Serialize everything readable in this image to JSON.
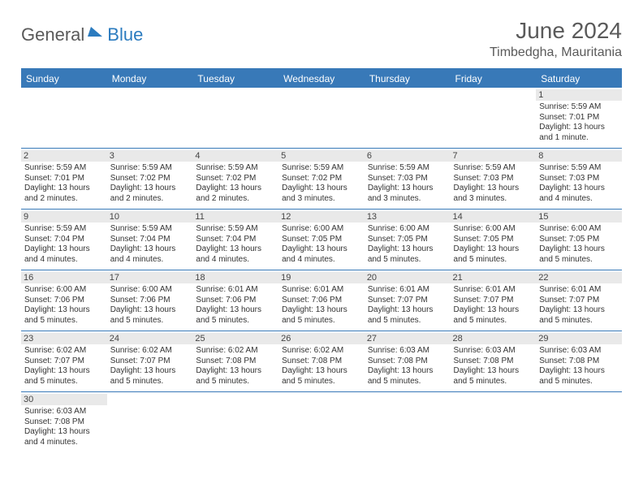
{
  "logo": {
    "text1": "General",
    "text2": "Blue"
  },
  "title": "June 2024",
  "location": "Timbedgha, Mauritania",
  "colors": {
    "header_bg": "#3879b8",
    "header_text": "#ffffff",
    "daynum_bg": "#e9e9e9",
    "border": "#3879b8",
    "logo_gray": "#5a5a5a",
    "logo_blue": "#2b7bbf"
  },
  "weekdays": [
    "Sunday",
    "Monday",
    "Tuesday",
    "Wednesday",
    "Thursday",
    "Friday",
    "Saturday"
  ],
  "weeks": [
    [
      null,
      null,
      null,
      null,
      null,
      null,
      {
        "n": "1",
        "sunrise": "Sunrise: 5:59 AM",
        "sunset": "Sunset: 7:01 PM",
        "daylight": "Daylight: 13 hours and 1 minute."
      }
    ],
    [
      {
        "n": "2",
        "sunrise": "Sunrise: 5:59 AM",
        "sunset": "Sunset: 7:01 PM",
        "daylight": "Daylight: 13 hours and 2 minutes."
      },
      {
        "n": "3",
        "sunrise": "Sunrise: 5:59 AM",
        "sunset": "Sunset: 7:02 PM",
        "daylight": "Daylight: 13 hours and 2 minutes."
      },
      {
        "n": "4",
        "sunrise": "Sunrise: 5:59 AM",
        "sunset": "Sunset: 7:02 PM",
        "daylight": "Daylight: 13 hours and 2 minutes."
      },
      {
        "n": "5",
        "sunrise": "Sunrise: 5:59 AM",
        "sunset": "Sunset: 7:02 PM",
        "daylight": "Daylight: 13 hours and 3 minutes."
      },
      {
        "n": "6",
        "sunrise": "Sunrise: 5:59 AM",
        "sunset": "Sunset: 7:03 PM",
        "daylight": "Daylight: 13 hours and 3 minutes."
      },
      {
        "n": "7",
        "sunrise": "Sunrise: 5:59 AM",
        "sunset": "Sunset: 7:03 PM",
        "daylight": "Daylight: 13 hours and 3 minutes."
      },
      {
        "n": "8",
        "sunrise": "Sunrise: 5:59 AM",
        "sunset": "Sunset: 7:03 PM",
        "daylight": "Daylight: 13 hours and 4 minutes."
      }
    ],
    [
      {
        "n": "9",
        "sunrise": "Sunrise: 5:59 AM",
        "sunset": "Sunset: 7:04 PM",
        "daylight": "Daylight: 13 hours and 4 minutes."
      },
      {
        "n": "10",
        "sunrise": "Sunrise: 5:59 AM",
        "sunset": "Sunset: 7:04 PM",
        "daylight": "Daylight: 13 hours and 4 minutes."
      },
      {
        "n": "11",
        "sunrise": "Sunrise: 5:59 AM",
        "sunset": "Sunset: 7:04 PM",
        "daylight": "Daylight: 13 hours and 4 minutes."
      },
      {
        "n": "12",
        "sunrise": "Sunrise: 6:00 AM",
        "sunset": "Sunset: 7:05 PM",
        "daylight": "Daylight: 13 hours and 4 minutes."
      },
      {
        "n": "13",
        "sunrise": "Sunrise: 6:00 AM",
        "sunset": "Sunset: 7:05 PM",
        "daylight": "Daylight: 13 hours and 5 minutes."
      },
      {
        "n": "14",
        "sunrise": "Sunrise: 6:00 AM",
        "sunset": "Sunset: 7:05 PM",
        "daylight": "Daylight: 13 hours and 5 minutes."
      },
      {
        "n": "15",
        "sunrise": "Sunrise: 6:00 AM",
        "sunset": "Sunset: 7:05 PM",
        "daylight": "Daylight: 13 hours and 5 minutes."
      }
    ],
    [
      {
        "n": "16",
        "sunrise": "Sunrise: 6:00 AM",
        "sunset": "Sunset: 7:06 PM",
        "daylight": "Daylight: 13 hours and 5 minutes."
      },
      {
        "n": "17",
        "sunrise": "Sunrise: 6:00 AM",
        "sunset": "Sunset: 7:06 PM",
        "daylight": "Daylight: 13 hours and 5 minutes."
      },
      {
        "n": "18",
        "sunrise": "Sunrise: 6:01 AM",
        "sunset": "Sunset: 7:06 PM",
        "daylight": "Daylight: 13 hours and 5 minutes."
      },
      {
        "n": "19",
        "sunrise": "Sunrise: 6:01 AM",
        "sunset": "Sunset: 7:06 PM",
        "daylight": "Daylight: 13 hours and 5 minutes."
      },
      {
        "n": "20",
        "sunrise": "Sunrise: 6:01 AM",
        "sunset": "Sunset: 7:07 PM",
        "daylight": "Daylight: 13 hours and 5 minutes."
      },
      {
        "n": "21",
        "sunrise": "Sunrise: 6:01 AM",
        "sunset": "Sunset: 7:07 PM",
        "daylight": "Daylight: 13 hours and 5 minutes."
      },
      {
        "n": "22",
        "sunrise": "Sunrise: 6:01 AM",
        "sunset": "Sunset: 7:07 PM",
        "daylight": "Daylight: 13 hours and 5 minutes."
      }
    ],
    [
      {
        "n": "23",
        "sunrise": "Sunrise: 6:02 AM",
        "sunset": "Sunset: 7:07 PM",
        "daylight": "Daylight: 13 hours and 5 minutes."
      },
      {
        "n": "24",
        "sunrise": "Sunrise: 6:02 AM",
        "sunset": "Sunset: 7:07 PM",
        "daylight": "Daylight: 13 hours and 5 minutes."
      },
      {
        "n": "25",
        "sunrise": "Sunrise: 6:02 AM",
        "sunset": "Sunset: 7:08 PM",
        "daylight": "Daylight: 13 hours and 5 minutes."
      },
      {
        "n": "26",
        "sunrise": "Sunrise: 6:02 AM",
        "sunset": "Sunset: 7:08 PM",
        "daylight": "Daylight: 13 hours and 5 minutes."
      },
      {
        "n": "27",
        "sunrise": "Sunrise: 6:03 AM",
        "sunset": "Sunset: 7:08 PM",
        "daylight": "Daylight: 13 hours and 5 minutes."
      },
      {
        "n": "28",
        "sunrise": "Sunrise: 6:03 AM",
        "sunset": "Sunset: 7:08 PM",
        "daylight": "Daylight: 13 hours and 5 minutes."
      },
      {
        "n": "29",
        "sunrise": "Sunrise: 6:03 AM",
        "sunset": "Sunset: 7:08 PM",
        "daylight": "Daylight: 13 hours and 5 minutes."
      }
    ],
    [
      {
        "n": "30",
        "sunrise": "Sunrise: 6:03 AM",
        "sunset": "Sunset: 7:08 PM",
        "daylight": "Daylight: 13 hours and 4 minutes."
      },
      null,
      null,
      null,
      null,
      null,
      null
    ]
  ]
}
